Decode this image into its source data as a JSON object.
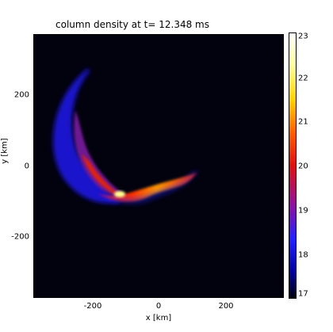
{
  "title": "column density at t= 12.348 ms",
  "xlabel": "x [km]",
  "ylabel": "y [km]",
  "x_ticks": [
    "-200",
    "0",
    "200"
  ],
  "y_ticks": [
    "200",
    "0",
    "-200"
  ],
  "colorbar_ticks": [
    "23",
    "22",
    "21",
    "20",
    "19",
    "18",
    "17"
  ],
  "colors": {
    "background": "#02020e",
    "low": "#0000ff",
    "mid": "#ff2000",
    "high": "#ffff99"
  }
}
